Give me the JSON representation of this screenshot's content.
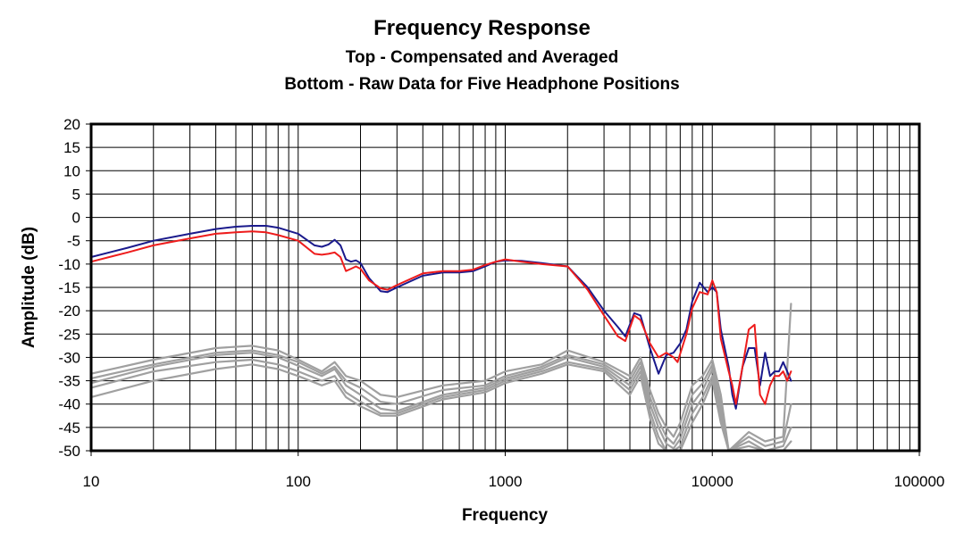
{
  "chart_data": {
    "type": "line",
    "title": "Frequency Response",
    "subtitle_1": "Top -  Compensated and Averaged",
    "subtitle_2": "Bottom - Raw Data for Five Headphone Positions",
    "xlabel": "Frequency",
    "ylabel": "Amplitude (dB)",
    "x_scale": "log",
    "xlim": [
      10,
      100000
    ],
    "ylim": [
      -50,
      20
    ],
    "x_ticks": [
      {
        "value": 10,
        "label": "10"
      },
      {
        "value": 100,
        "label": "100"
      },
      {
        "value": 1000,
        "label": "1000"
      },
      {
        "value": 10000,
        "label": "10000"
      },
      {
        "value": 100000,
        "label": "100000"
      }
    ],
    "y_ticks": [
      {
        "value": 20,
        "label": "20"
      },
      {
        "value": 15,
        "label": "15"
      },
      {
        "value": 10,
        "label": "10"
      },
      {
        "value": 5,
        "label": "5"
      },
      {
        "value": 0,
        "label": "0"
      },
      {
        "value": -5,
        "label": "-5"
      },
      {
        "value": -10,
        "label": "-10"
      },
      {
        "value": -15,
        "label": "-15"
      },
      {
        "value": -20,
        "label": "-20"
      },
      {
        "value": -25,
        "label": "-25"
      },
      {
        "value": -30,
        "label": "-30"
      },
      {
        "value": -35,
        "label": "-35"
      },
      {
        "value": -40,
        "label": "-40"
      },
      {
        "value": -45,
        "label": "-45"
      },
      {
        "value": -50,
        "label": "-50"
      }
    ],
    "grid": true,
    "series": [
      {
        "color": "#1a1a8c",
        "points": [
          [
            10,
            -8.5
          ],
          [
            15,
            -6.5
          ],
          [
            20,
            -5
          ],
          [
            30,
            -3.5
          ],
          [
            40,
            -2.5
          ],
          [
            50,
            -2
          ],
          [
            60,
            -1.8
          ],
          [
            70,
            -1.8
          ],
          [
            80,
            -2.2
          ],
          [
            100,
            -3.5
          ],
          [
            120,
            -6
          ],
          [
            130,
            -6.3
          ],
          [
            140,
            -5.8
          ],
          [
            150,
            -4.8
          ],
          [
            160,
            -6
          ],
          [
            170,
            -9
          ],
          [
            180,
            -9.5
          ],
          [
            190,
            -9.2
          ],
          [
            200,
            -9.8
          ],
          [
            220,
            -13
          ],
          [
            250,
            -15.8
          ],
          [
            270,
            -16
          ],
          [
            300,
            -15
          ],
          [
            400,
            -12.5
          ],
          [
            500,
            -11.8
          ],
          [
            600,
            -11.8
          ],
          [
            700,
            -11.5
          ],
          [
            800,
            -10.5
          ],
          [
            900,
            -9.5
          ],
          [
            1000,
            -9.2
          ],
          [
            1200,
            -9.3
          ],
          [
            1500,
            -9.8
          ],
          [
            2000,
            -10.5
          ],
          [
            2500,
            -15
          ],
          [
            3000,
            -20
          ],
          [
            3500,
            -23.5
          ],
          [
            3800,
            -25.5
          ],
          [
            4200,
            -20.5
          ],
          [
            4500,
            -21
          ],
          [
            5000,
            -28
          ],
          [
            5500,
            -33.5
          ],
          [
            6000,
            -29.5
          ],
          [
            6500,
            -29
          ],
          [
            7000,
            -27
          ],
          [
            7500,
            -24
          ],
          [
            8000,
            -18
          ],
          [
            8700,
            -14
          ],
          [
            9500,
            -16
          ],
          [
            10000,
            -15
          ],
          [
            10500,
            -16
          ],
          [
            11000,
            -24
          ],
          [
            12000,
            -32
          ],
          [
            12500,
            -38
          ],
          [
            13000,
            -41
          ],
          [
            14000,
            -32
          ],
          [
            15000,
            -28
          ],
          [
            16000,
            -28
          ],
          [
            17000,
            -36
          ],
          [
            18000,
            -29
          ],
          [
            19000,
            -34
          ],
          [
            20000,
            -33
          ],
          [
            21000,
            -33
          ],
          [
            22000,
            -31
          ],
          [
            23000,
            -33
          ],
          [
            24000,
            -35
          ]
        ]
      },
      {
        "color": "#ee1c1c",
        "points": [
          [
            10,
            -9.5
          ],
          [
            15,
            -7.5
          ],
          [
            20,
            -6
          ],
          [
            30,
            -4.5
          ],
          [
            40,
            -3.5
          ],
          [
            50,
            -3.2
          ],
          [
            60,
            -3
          ],
          [
            70,
            -3.2
          ],
          [
            80,
            -3.8
          ],
          [
            100,
            -5
          ],
          [
            120,
            -7.8
          ],
          [
            130,
            -8
          ],
          [
            140,
            -7.8
          ],
          [
            150,
            -7.5
          ],
          [
            160,
            -8.5
          ],
          [
            170,
            -11.5
          ],
          [
            180,
            -11
          ],
          [
            190,
            -10.5
          ],
          [
            200,
            -11
          ],
          [
            220,
            -13.5
          ],
          [
            250,
            -15.2
          ],
          [
            270,
            -15.5
          ],
          [
            300,
            -14.5
          ],
          [
            400,
            -12
          ],
          [
            500,
            -11.5
          ],
          [
            600,
            -11.5
          ],
          [
            700,
            -11.2
          ],
          [
            800,
            -10.2
          ],
          [
            900,
            -9.5
          ],
          [
            1000,
            -9
          ],
          [
            1200,
            -9.5
          ],
          [
            1500,
            -10
          ],
          [
            2000,
            -10.5
          ],
          [
            2500,
            -15.5
          ],
          [
            3000,
            -21
          ],
          [
            3500,
            -25.5
          ],
          [
            3800,
            -26.5
          ],
          [
            4200,
            -21
          ],
          [
            4500,
            -22
          ],
          [
            5000,
            -27
          ],
          [
            5500,
            -30
          ],
          [
            6000,
            -29
          ],
          [
            6500,
            -30
          ],
          [
            6800,
            -31
          ],
          [
            7500,
            -25
          ],
          [
            8000,
            -19.5
          ],
          [
            8700,
            -16
          ],
          [
            9500,
            -16.5
          ],
          [
            10000,
            -13.5
          ],
          [
            10500,
            -16
          ],
          [
            11000,
            -26
          ],
          [
            12000,
            -33
          ],
          [
            12500,
            -36
          ],
          [
            13000,
            -40
          ],
          [
            14000,
            -32
          ],
          [
            15000,
            -24
          ],
          [
            16000,
            -23
          ],
          [
            17000,
            -38
          ],
          [
            18000,
            -40
          ],
          [
            19000,
            -36
          ],
          [
            20000,
            -34
          ],
          [
            21000,
            -34
          ],
          [
            22000,
            -33
          ],
          [
            23000,
            -35
          ],
          [
            24000,
            -33
          ]
        ]
      },
      {
        "color": "#a0a0a0",
        "points": [
          [
            10,
            -33.5
          ],
          [
            20,
            -30.5
          ],
          [
            40,
            -28
          ],
          [
            60,
            -27.5
          ],
          [
            80,
            -28.5
          ],
          [
            100,
            -30.5
          ],
          [
            130,
            -33
          ],
          [
            150,
            -31
          ],
          [
            170,
            -34
          ],
          [
            200,
            -35
          ],
          [
            250,
            -38
          ],
          [
            300,
            -38.5
          ],
          [
            500,
            -36
          ],
          [
            800,
            -35
          ],
          [
            1000,
            -33
          ],
          [
            1500,
            -31.5
          ],
          [
            2000,
            -28.5
          ],
          [
            3000,
            -31
          ],
          [
            4000,
            -34
          ],
          [
            4500,
            -30
          ],
          [
            5000,
            -37
          ],
          [
            5500,
            -42
          ],
          [
            6000,
            -45
          ],
          [
            6500,
            -47
          ],
          [
            7000,
            -44
          ],
          [
            8000,
            -36
          ],
          [
            9000,
            -34
          ],
          [
            10000,
            -30.5
          ],
          [
            11000,
            -38
          ],
          [
            12000,
            -50
          ],
          [
            15000,
            -46
          ],
          [
            18000,
            -48
          ],
          [
            22000,
            -47
          ],
          [
            24000,
            -18.5
          ]
        ]
      },
      {
        "color": "#a0a0a0",
        "points": [
          [
            10,
            -34.5
          ],
          [
            20,
            -31.5
          ],
          [
            40,
            -29
          ],
          [
            60,
            -28.5
          ],
          [
            80,
            -29.5
          ],
          [
            100,
            -31
          ],
          [
            130,
            -33.5
          ],
          [
            150,
            -32
          ],
          [
            170,
            -35
          ],
          [
            200,
            -36.5
          ],
          [
            250,
            -39.5
          ],
          [
            300,
            -40
          ],
          [
            500,
            -37
          ],
          [
            800,
            -36
          ],
          [
            1000,
            -34
          ],
          [
            1500,
            -32
          ],
          [
            2000,
            -29.5
          ],
          [
            3000,
            -31.5
          ],
          [
            4000,
            -35
          ],
          [
            4500,
            -31
          ],
          [
            5000,
            -38.5
          ],
          [
            5500,
            -43.5
          ],
          [
            6000,
            -47
          ],
          [
            6500,
            -48.5
          ],
          [
            7000,
            -46
          ],
          [
            8000,
            -38
          ],
          [
            9000,
            -35.5
          ],
          [
            10000,
            -31.5
          ],
          [
            11000,
            -40
          ],
          [
            12000,
            -50
          ],
          [
            15000,
            -47
          ],
          [
            18000,
            -49
          ],
          [
            22000,
            -48
          ],
          [
            24000,
            -40
          ]
        ]
      },
      {
        "color": "#a0a0a0",
        "points": [
          [
            10,
            -35.5
          ],
          [
            20,
            -32
          ],
          [
            40,
            -29.5
          ],
          [
            60,
            -29
          ],
          [
            80,
            -30
          ],
          [
            100,
            -31.8
          ],
          [
            130,
            -34
          ],
          [
            150,
            -32.5
          ],
          [
            170,
            -36
          ],
          [
            200,
            -38
          ],
          [
            250,
            -41
          ],
          [
            300,
            -41.5
          ],
          [
            500,
            -38
          ],
          [
            800,
            -36.5
          ],
          [
            1000,
            -34.5
          ],
          [
            1500,
            -32.5
          ],
          [
            2000,
            -30
          ],
          [
            3000,
            -32
          ],
          [
            4000,
            -36
          ],
          [
            4500,
            -32
          ],
          [
            5000,
            -40
          ],
          [
            5500,
            -45
          ],
          [
            6000,
            -48.5
          ],
          [
            6500,
            -49.5
          ],
          [
            7000,
            -47.5
          ],
          [
            8000,
            -40
          ],
          [
            9000,
            -37
          ],
          [
            10000,
            -32.5
          ],
          [
            11000,
            -41
          ],
          [
            12000,
            -50
          ],
          [
            15000,
            -48
          ],
          [
            18000,
            -50
          ],
          [
            22000,
            -49
          ],
          [
            24000,
            -45
          ]
        ]
      },
      {
        "color": "#a0a0a0",
        "points": [
          [
            10,
            -36.5
          ],
          [
            20,
            -33
          ],
          [
            40,
            -31
          ],
          [
            60,
            -30.5
          ],
          [
            80,
            -31.5
          ],
          [
            100,
            -33
          ],
          [
            130,
            -35
          ],
          [
            150,
            -34
          ],
          [
            170,
            -37.5
          ],
          [
            200,
            -39.5
          ],
          [
            250,
            -42
          ],
          [
            300,
            -42
          ],
          [
            500,
            -38.5
          ],
          [
            800,
            -37
          ],
          [
            1000,
            -35
          ],
          [
            1500,
            -33
          ],
          [
            2000,
            -31
          ],
          [
            3000,
            -32.5
          ],
          [
            4000,
            -37
          ],
          [
            4500,
            -33
          ],
          [
            5000,
            -41.5
          ],
          [
            5500,
            -47
          ],
          [
            6000,
            -50
          ],
          [
            6500,
            -50
          ],
          [
            7000,
            -49
          ],
          [
            8000,
            -42
          ],
          [
            9000,
            -38.5
          ],
          [
            10000,
            -34
          ],
          [
            11000,
            -42.5
          ],
          [
            12000,
            -50
          ],
          [
            15000,
            -49
          ],
          [
            18000,
            -50
          ],
          [
            22000,
            -50
          ],
          [
            24000,
            -48
          ]
        ]
      },
      {
        "color": "#a0a0a0",
        "points": [
          [
            10,
            -38.5
          ],
          [
            20,
            -35
          ],
          [
            40,
            -32.5
          ],
          [
            60,
            -31.5
          ],
          [
            80,
            -32.5
          ],
          [
            100,
            -34
          ],
          [
            130,
            -36
          ],
          [
            150,
            -35
          ],
          [
            170,
            -38.5
          ],
          [
            200,
            -40.5
          ],
          [
            250,
            -42.5
          ],
          [
            300,
            -42.5
          ],
          [
            500,
            -39
          ],
          [
            800,
            -37.5
          ],
          [
            1000,
            -35.5
          ],
          [
            1500,
            -33.5
          ],
          [
            2000,
            -31.5
          ],
          [
            3000,
            -33
          ],
          [
            4000,
            -38
          ],
          [
            4500,
            -34
          ],
          [
            5000,
            -43
          ],
          [
            5500,
            -48.5
          ],
          [
            6000,
            -50
          ],
          [
            6500,
            -50
          ],
          [
            7000,
            -50
          ],
          [
            8000,
            -44
          ],
          [
            9000,
            -40
          ],
          [
            10000,
            -35
          ],
          [
            11000,
            -44
          ],
          [
            12000,
            -50
          ],
          [
            15000,
            -50
          ],
          [
            18000,
            -50
          ],
          [
            22000,
            -50
          ],
          [
            24000,
            -50
          ]
        ]
      }
    ]
  }
}
